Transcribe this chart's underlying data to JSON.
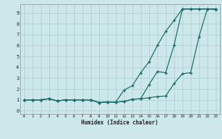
{
  "xlabel": "Humidex (Indice chaleur)",
  "bg_color": "#cce8ea",
  "line_color": "#1a6b6b",
  "grid_color": "#aacccc",
  "xlim": [
    -0.5,
    23.5
  ],
  "ylim": [
    -0.3,
    9.8
  ],
  "xticks": [
    0,
    1,
    2,
    3,
    4,
    5,
    6,
    7,
    8,
    9,
    10,
    11,
    12,
    13,
    14,
    15,
    16,
    17,
    18,
    19,
    20,
    21,
    22,
    23
  ],
  "yticks": [
    0,
    1,
    2,
    3,
    4,
    5,
    6,
    7,
    8,
    9
  ],
  "line1_x": [
    0,
    1,
    2,
    3,
    4,
    5,
    6,
    7,
    8,
    9,
    10,
    11,
    12,
    13,
    14,
    15,
    16,
    17,
    18,
    19,
    20,
    21,
    22,
    23
  ],
  "line1_y": [
    1.0,
    1.0,
    1.0,
    1.1,
    0.9,
    1.0,
    1.0,
    1.0,
    1.0,
    0.75,
    0.8,
    0.8,
    0.85,
    1.05,
    1.1,
    1.2,
    1.3,
    1.35,
    2.5,
    3.4,
    3.5,
    6.8,
    9.35,
    9.3
  ],
  "line2_x": [
    0,
    1,
    2,
    3,
    4,
    5,
    6,
    7,
    8,
    9,
    10,
    11,
    12,
    13,
    14,
    15,
    16,
    17,
    18,
    19,
    20,
    21,
    22,
    23
  ],
  "line2_y": [
    1.0,
    1.0,
    1.0,
    1.1,
    0.9,
    1.0,
    1.0,
    1.0,
    1.0,
    0.75,
    0.8,
    0.8,
    0.85,
    1.05,
    1.1,
    2.4,
    3.6,
    3.5,
    6.0,
    9.35,
    9.35,
    9.35,
    9.35,
    9.35
  ],
  "line3_x": [
    0,
    1,
    2,
    3,
    4,
    5,
    6,
    7,
    8,
    9,
    10,
    11,
    12,
    13,
    14,
    15,
    16,
    17,
    18,
    19,
    20,
    21,
    22,
    23
  ],
  "line3_y": [
    1.0,
    1.0,
    1.0,
    1.1,
    0.9,
    1.0,
    1.0,
    1.0,
    1.0,
    0.75,
    0.8,
    0.8,
    1.9,
    2.3,
    3.5,
    4.5,
    6.0,
    7.3,
    8.3,
    9.35,
    9.35,
    9.35,
    9.35,
    9.35
  ]
}
